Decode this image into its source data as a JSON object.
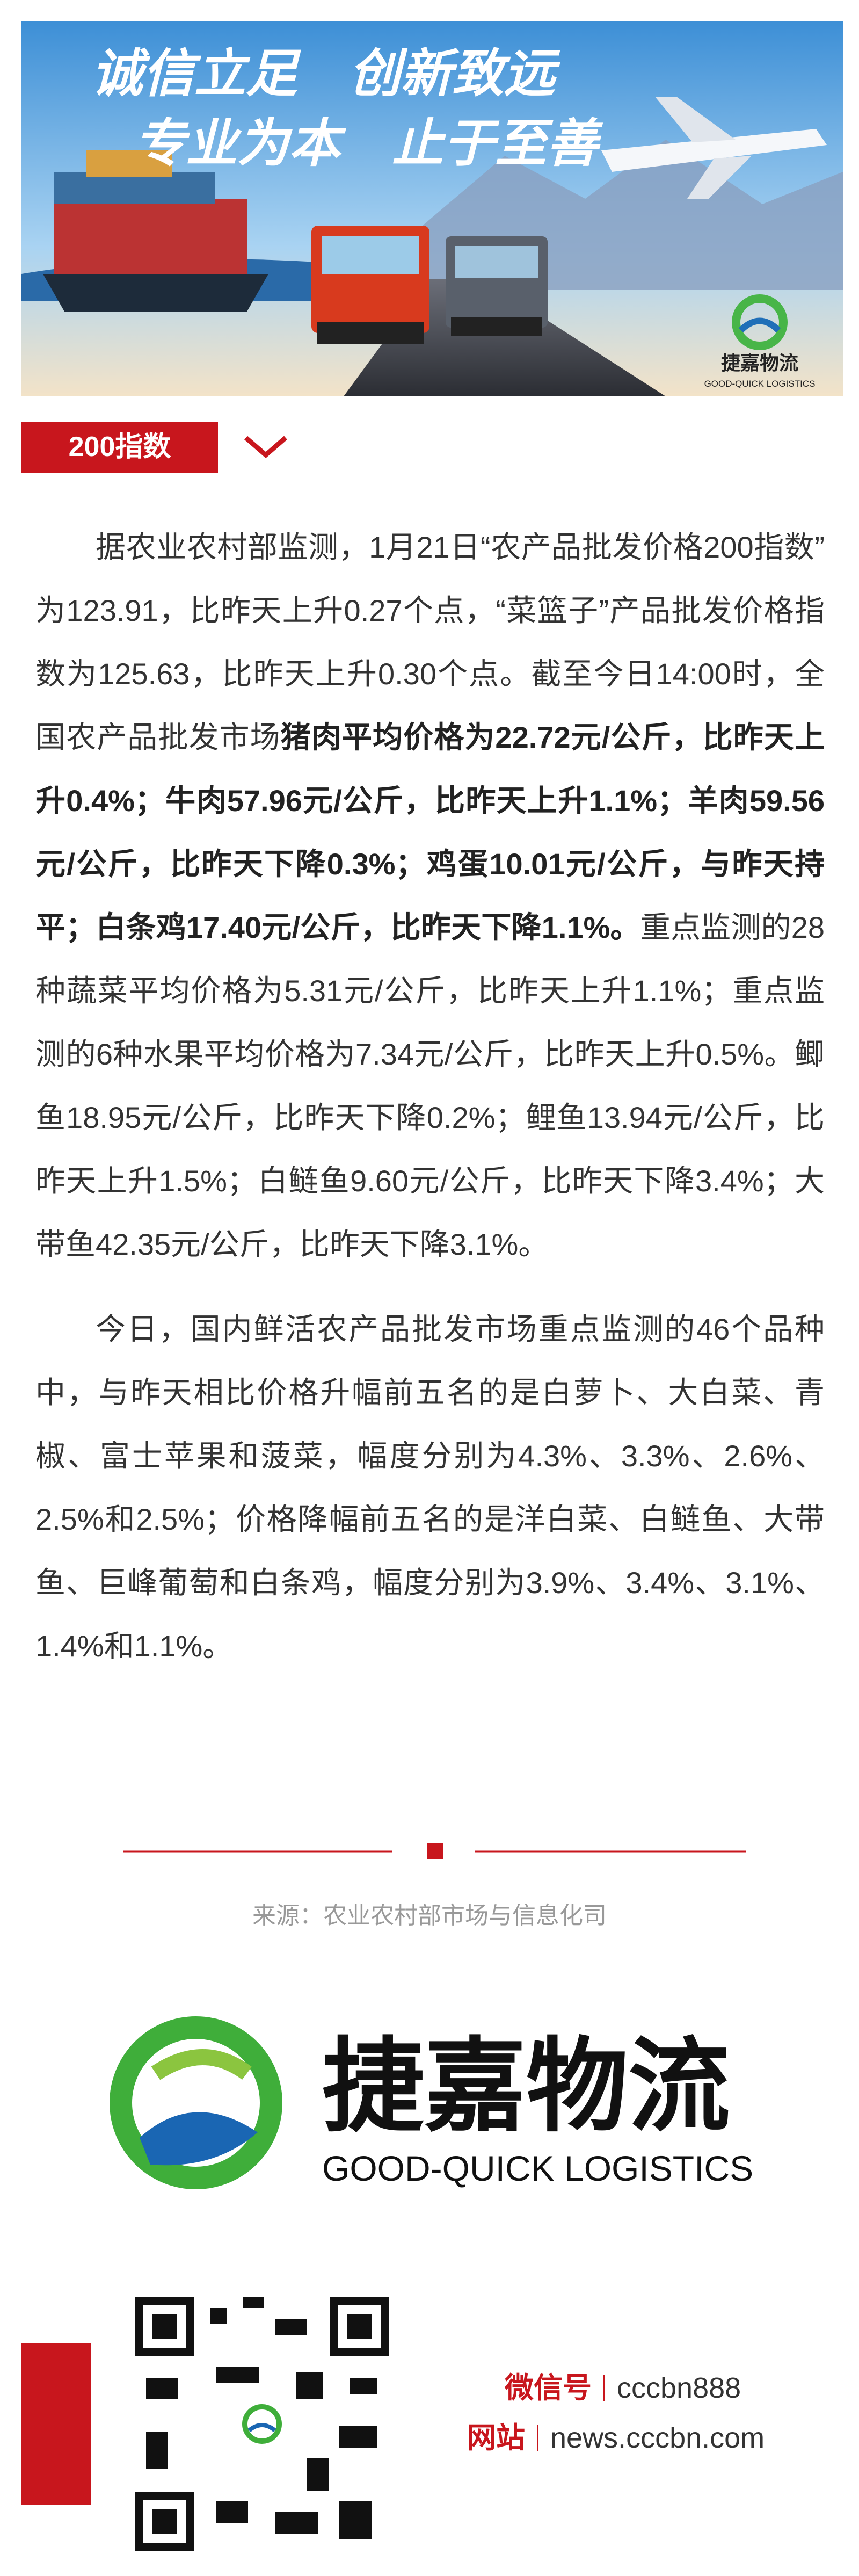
{
  "banner": {
    "line1": "诚信立足　创新致远",
    "line2": "专业为本　止于至善",
    "logo_cn": "捷嘉物流",
    "logo_en": "GOOD-QUICK LOGISTICS"
  },
  "section_tag": "200指数",
  "paragraphs": [
    {
      "segments": [
        {
          "text": "据农业农村部监测，1月21日“农产品批发价格200指数”为123.91，比昨天上升0.27个点，“菜篮子”产品批发价格指数为125.63，比昨天上升0.30个点。截至今日14:00时，全国农产品批发市场",
          "bold": false
        },
        {
          "text": "猪肉平均价格为22.72元/公斤，比昨天上升0.4%；牛肉57.96元/公斤，比昨天上升1.1%；羊肉59.56元/公斤，比昨天下降0.3%；鸡蛋10.01元/公斤，与昨天持平；白条鸡17.40元/公斤，比昨天下降1.1%。",
          "bold": true
        },
        {
          "text": "重点监测的28种蔬菜平均价格为5.31元/公斤，比昨天上升1.1%；重点监测的6种水果平均价格为7.34元/公斤，比昨天上升0.5%。鲫鱼18.95元/公斤，比昨天下降0.2%；鲤鱼13.94元/公斤，比昨天上升1.5%；白鲢鱼9.60元/公斤，比昨天下降3.4%；大带鱼42.35元/公斤，比昨天下降3.1%。",
          "bold": false
        }
      ]
    },
    {
      "segments": [
        {
          "text": "今日，国内鲜活农产品批发市场重点监测的46个品种中，与昨天相比价格升幅前五名的是白萝卜、大白菜、青椒、富士苹果和菠菜，幅度分别为4.3%、3.3%、2.6%、2.5%和2.5%；价格降幅前五名的是洋白菜、白鲢鱼、大带鱼、巨峰葡萄和白条鸡，幅度分别为3.9%、3.4%、3.1%、1.4%和1.1%。",
          "bold": false
        }
      ]
    }
  ],
  "source": "来源：农业农村部市场与信息化司",
  "logo": {
    "cn": "捷嘉物流",
    "en": "GOOD-QUICK LOGISTICS"
  },
  "footer": {
    "wechat_label": "微信号",
    "wechat_id": "cccbn888",
    "site_label": "网站",
    "site_url": "news.cccbn.com"
  }
}
